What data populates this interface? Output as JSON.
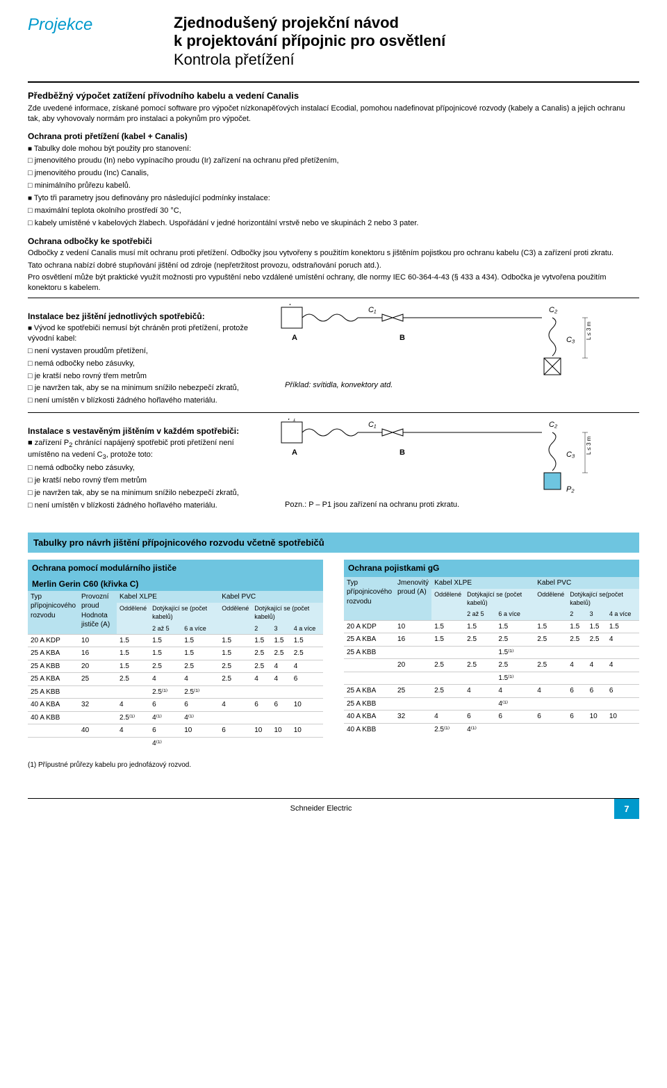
{
  "header": {
    "projekce": "Projekce",
    "title1": "Zjednodušený projekční návod",
    "title2": "k projektování přípojnic pro osvětlení",
    "subtitle": "Kontrola přetížení"
  },
  "sec1": {
    "h": "Předběžný výpočet zatížení přívodního kabelu a vedení Canalis",
    "p": "Zde uvedené informace, získané pomocí software pro výpočet nízkonapěťových instalací Ecodial, pomohou nadefinovat přípojnicové rozvody (kabely a Canalis) a jejich ochranu tak, aby vyhovovaly normám pro instalaci a pokynům pro výpočet."
  },
  "sec2": {
    "h": "Ochrana proti přetížení (kabel + Canalis)",
    "b1": "Tabulky dole mohou být použity pro stanovení:",
    "x1": "jmenovitého proudu (In) nebo vypínacího proudu (Ir) zařízení na ochranu před přetížením,",
    "x2": "jmenovitého proudu (Inc) Canalis,",
    "x3": "minimálního průřezu kabelů.",
    "b2": "Tyto tři parametry jsou definovány pro následující podmínky instalace:",
    "x4": "maximální teplota okolního prostředí 30 °C,",
    "x5": "kabely umístěné v kabelových žlabech. Uspořádání v jedné horizontální vrstvě nebo ve skupinách 2 nebo 3 pater."
  },
  "sec3": {
    "h": "Ochrana odbočky ke spotřebiči",
    "p1": "Odbočky z vedení Canalis musí mít ochranu proti přetížení. Odbočky jsou vytvořeny s použitím konektoru s jištěním pojistkou pro ochranu kabelu (C3) a zařízení proti zkratu.",
    "p2": "Tato ochrana nabízí dobré stupňování jištění od zdroje (nepřetržitost provozu, odstraňování poruch atd.).",
    "p3": "Pro osvětlení může být praktické využít možnosti pro vypuštění nebo vzdálené umístění ochrany, dle normy IEC 60-364-4-43 (§ 433 a 434). Odbočka je vytvořena použitím konektoru s kabelem."
  },
  "inst1": {
    "h": "Instalace bez jištění jednotlivých spotřebičů:",
    "b1": "Vývod ke spotřebiči nemusí být chráněn proti přetížení, protože vývodní kabel:",
    "x1": "není vystaven proudům přetížení,",
    "x2": "nemá odbočky nebo zásuvky,",
    "x3": "je kratší nebo rovný třem metrům",
    "x4": "je navržen tak, aby se na minimum snížilo nebezpečí zkratů,",
    "x5": "není umístěn v blízkosti žádného hořlavého materiálu.",
    "diag": {
      "P": "P",
      "A": "A",
      "B": "B",
      "C1": "C₁",
      "C2": "C₂",
      "C3": "C₃",
      "L": "L ≤ 3 m",
      "caption": "Příklad: svítidla, konvektory atd."
    }
  },
  "inst2": {
    "h": "Instalace s vestavěným jištěním v každém spotřebiči:",
    "b1a": "zařízení P",
    "b1b": " chránící napájený spotřebič proti přetížení není umístěno na vedení C",
    "b1c": ", protože toto:",
    "sub2": "2",
    "sub3": "3",
    "x1": "nemá odbočky nebo zásuvky,",
    "x2": "je kratší nebo rovný třem metrům",
    "x3": "je navržen tak, aby se na minimum snížilo nebezpečí zkratů,",
    "x4": "není umístěn v blízkosti žádného hořlavého materiálu.",
    "diag": {
      "P1": "P₁",
      "A": "A",
      "B": "B",
      "C1": "C₁",
      "C2": "C₂",
      "C3": "C₃",
      "P2": "P₂",
      "L": "L ≤ 3 m",
      "caption": "Pozn.: P – P1 jsou zařízení na ochranu proti zkratu."
    }
  },
  "band": "Tabulky pro návrh jištění přípojnicového rozvodu včetně spotřebičů",
  "tableL": {
    "title1": "Ochrana pomocí modulárního jističe",
    "title2": "Merlin Gerin C60 (křivka C)",
    "h_typ": "Typ přípojnicového rozvodu",
    "h_prov": "Provozní proud Hodnota jističe (A)",
    "h_xlpe": "Kabel XLPE",
    "h_pvc": "Kabel PVC",
    "h_odd": "Oddělené",
    "h_dot": "Dotýkající se (počet kabelů)",
    "h_25": "2 až 5",
    "h_6v": "6 a více",
    "h_2": "2",
    "h_3": "3",
    "h_4v": "4 a více",
    "rows": [
      {
        "t": "20 A KDP",
        "a": "10",
        "v": [
          "1.5",
          "1.5",
          "1.5",
          "1.5",
          "1.5",
          "1.5",
          "1.5"
        ]
      },
      {
        "t": "25 A KBA",
        "a": "16",
        "v": [
          "1.5",
          "1.5",
          "1.5",
          "1.5",
          "2.5",
          "2.5",
          "2.5"
        ]
      },
      {
        "t": "25 A KBB",
        "a": "20",
        "v": [
          "1.5",
          "2.5",
          "2.5",
          "2.5",
          "2.5",
          "4",
          "4"
        ]
      },
      {
        "t": "25 A KBA",
        "a": "25",
        "v": [
          "2.5",
          "4",
          "4",
          "2.5",
          "4",
          "4",
          "6"
        ]
      },
      {
        "t": "25 A KBB",
        "a": "",
        "v": [
          "",
          "2.5⁽¹⁾",
          "2.5⁽¹⁾",
          "",
          "",
          "",
          ""
        ]
      },
      {
        "t": "40 A KBA",
        "a": "32",
        "v": [
          "4",
          "6",
          "6",
          "4",
          "6",
          "6",
          "10"
        ]
      },
      {
        "t": "40 A KBB",
        "a": "",
        "v": [
          "2.5⁽¹⁾",
          "4⁽¹⁾",
          "4⁽¹⁾",
          "",
          "",
          "",
          ""
        ]
      },
      {
        "t": "",
        "a": "40",
        "v": [
          "4",
          "6",
          "10",
          "6",
          "10",
          "10",
          "10"
        ]
      },
      {
        "t": "",
        "a": "",
        "v": [
          "",
          "4⁽¹⁾",
          "",
          "",
          "",
          "",
          ""
        ]
      }
    ]
  },
  "tableR": {
    "title1": "Ochrana pojistkami gG",
    "h_typ": "Typ přípojnicového rozvodu",
    "h_jmen": "Jmenovitý proud (A)",
    "h_xlpe": "Kabel XLPE",
    "h_pvc": "Kabel PVC",
    "h_odd": "Oddělené",
    "h_dot": "Dotýkající se (počet kabelů)",
    "h_dotp": "Dotýkající se(počet kabelů)",
    "h_25": "2 až 5",
    "h_6v": "6 a více",
    "h_2": "2",
    "h_3": "3",
    "h_4v": "4 a více",
    "rows": [
      {
        "t": "20 A KDP",
        "a": "10",
        "v": [
          "1.5",
          "1.5",
          "1.5",
          "1.5",
          "1.5",
          "1.5",
          "1.5"
        ]
      },
      {
        "t": "25 A KBA",
        "a": "16",
        "v": [
          "1.5",
          "2.5",
          "2.5",
          "2.5",
          "2.5",
          "2.5",
          "4"
        ]
      },
      {
        "t": "25 A KBB",
        "a": "",
        "v": [
          "",
          "",
          "1.5⁽¹⁾",
          "",
          "",
          "",
          ""
        ]
      },
      {
        "t": "",
        "a": "20",
        "v": [
          "2.5",
          "2.5",
          "2.5",
          "2.5",
          "4",
          "4",
          "4"
        ]
      },
      {
        "t": "",
        "a": "",
        "v": [
          "",
          "",
          "1.5⁽¹⁾",
          "",
          "",
          "",
          ""
        ]
      },
      {
        "t": "25 A KBA",
        "a": "25",
        "v": [
          "2.5",
          "4",
          "4",
          "4",
          "6",
          "6",
          "6"
        ]
      },
      {
        "t": "25 A KBB",
        "a": "",
        "v": [
          "",
          "",
          "4⁽¹⁾",
          "",
          "",
          "",
          ""
        ]
      },
      {
        "t": "40 A KBA",
        "a": "32",
        "v": [
          "4",
          "6",
          "6",
          "6",
          "6",
          "10",
          "10"
        ]
      },
      {
        "t": "40 A KBB",
        "a": "",
        "v": [
          "2.5⁽¹⁾",
          "4⁽¹⁾",
          "",
          "",
          "",
          "",
          ""
        ]
      }
    ]
  },
  "footnote": "(1) Přípustné průřezy kabelu pro jednofázový rozvod.",
  "footer": {
    "brand": "Schneider Electric",
    "page": "7"
  },
  "colors": {
    "accent": "#0099cc",
    "band": "#6ec5e0",
    "hdr1": "#b8e2ef",
    "hdr2": "#d4edf5"
  }
}
